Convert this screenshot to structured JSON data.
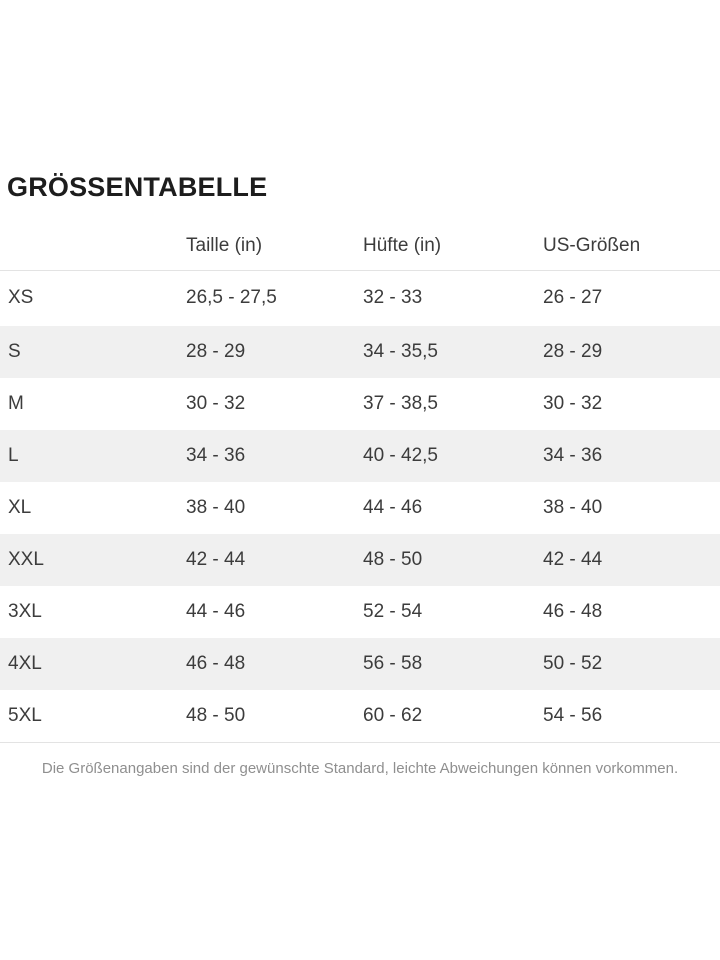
{
  "page": {
    "title": "GRÖSSENTABELLE",
    "disclaimer": "Die Größenangaben sind der gewünschte Standard, leichte Abweichungen können vorkommen."
  },
  "size_table": {
    "columns": [
      "",
      "Taille (in)",
      "Hüfte (in)",
      "US-Größen"
    ],
    "rows": [
      {
        "size": "XS",
        "taille": "26,5 - 27,5",
        "huefte": "32 - 33",
        "us": "26 - 27"
      },
      {
        "size": "S",
        "taille": "28 - 29",
        "huefte": "34 - 35,5",
        "us": "28 - 29"
      },
      {
        "size": "M",
        "taille": "30 - 32",
        "huefte": "37 - 38,5",
        "us": "30 - 32"
      },
      {
        "size": "L",
        "taille": "34 - 36",
        "huefte": "40 - 42,5",
        "us": "34 - 36"
      },
      {
        "size": "XL",
        "taille": "38 - 40",
        "huefte": "44 - 46",
        "us": "38 - 40"
      },
      {
        "size": "XXL",
        "taille": "42 - 44",
        "huefte": "48 - 50",
        "us": "42 - 44"
      },
      {
        "size": "3XL",
        "taille": "44 - 46",
        "huefte": "52 - 54",
        "us": "46 - 48"
      },
      {
        "size": "4XL",
        "taille": "46 - 48",
        "huefte": "56 - 58",
        "us": "50 - 52"
      },
      {
        "size": "5XL",
        "taille": "48 - 50",
        "huefte": "60 - 62",
        "us": "54 - 56"
      }
    ]
  },
  "colors": {
    "stripe": "#f0f0f0",
    "border": "#e3e3e3",
    "text": "#3c3c3c",
    "title": "#1d1d1d",
    "muted": "#8f8f8f"
  }
}
